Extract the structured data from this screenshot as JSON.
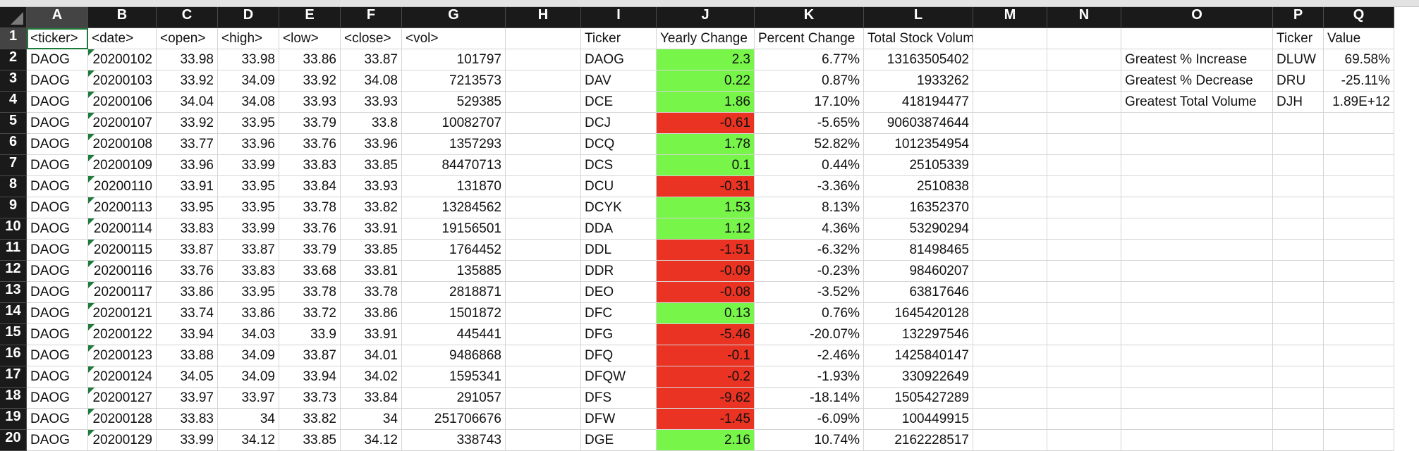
{
  "columns": [
    "A",
    "B",
    "C",
    "D",
    "E",
    "F",
    "G",
    "H",
    "I",
    "J",
    "K",
    "L",
    "M",
    "N",
    "O",
    "P",
    "Q"
  ],
  "rows": [
    {
      "n": "1",
      "cells": [
        "<ticker>",
        "<date>",
        "<open>",
        "<high>",
        "<low>",
        "<close>",
        "<vol>",
        "",
        "Ticker",
        "Yearly Change",
        "Percent Change",
        "Total Stock Volume",
        "",
        "",
        "",
        "Ticker",
        "Value"
      ]
    },
    {
      "n": "2",
      "cells": [
        "DAOG",
        "20200102",
        "33.98",
        "33.98",
        "33.86",
        "33.87",
        "101797",
        "",
        "DAOG",
        "2.3",
        "6.77%",
        "13163505402",
        "",
        "",
        "Greatest % Increase",
        "DLUW",
        "69.58%"
      ]
    },
    {
      "n": "3",
      "cells": [
        "DAOG",
        "20200103",
        "33.92",
        "34.09",
        "33.92",
        "34.08",
        "7213573",
        "",
        "DAV",
        "0.22",
        "0.87%",
        "1933262",
        "",
        "",
        "Greatest % Decrease",
        "DRU",
        "-25.11%"
      ]
    },
    {
      "n": "4",
      "cells": [
        "DAOG",
        "20200106",
        "34.04",
        "34.08",
        "33.93",
        "33.93",
        "529385",
        "",
        "DCE",
        "1.86",
        "17.10%",
        "418194477",
        "",
        "",
        "Greatest Total Volume",
        "DJH",
        "1.89E+12"
      ]
    },
    {
      "n": "5",
      "cells": [
        "DAOG",
        "20200107",
        "33.92",
        "33.95",
        "33.79",
        "33.8",
        "10082707",
        "",
        "DCJ",
        "-0.61",
        "-5.65%",
        "90603874644",
        "",
        "",
        "",
        "",
        ""
      ]
    },
    {
      "n": "6",
      "cells": [
        "DAOG",
        "20200108",
        "33.77",
        "33.96",
        "33.76",
        "33.96",
        "1357293",
        "",
        "DCQ",
        "1.78",
        "52.82%",
        "1012354954",
        "",
        "",
        "",
        "",
        ""
      ]
    },
    {
      "n": "7",
      "cells": [
        "DAOG",
        "20200109",
        "33.96",
        "33.99",
        "33.83",
        "33.85",
        "84470713",
        "",
        "DCS",
        "0.1",
        "0.44%",
        "25105339",
        "",
        "",
        "",
        "",
        ""
      ]
    },
    {
      "n": "8",
      "cells": [
        "DAOG",
        "20200110",
        "33.91",
        "33.95",
        "33.84",
        "33.93",
        "131870",
        "",
        "DCU",
        "-0.31",
        "-3.36%",
        "2510838",
        "",
        "",
        "",
        "",
        ""
      ]
    },
    {
      "n": "9",
      "cells": [
        "DAOG",
        "20200113",
        "33.95",
        "33.95",
        "33.78",
        "33.82",
        "13284562",
        "",
        "DCYK",
        "1.53",
        "8.13%",
        "16352370",
        "",
        "",
        "",
        "",
        ""
      ]
    },
    {
      "n": "10",
      "cells": [
        "DAOG",
        "20200114",
        "33.83",
        "33.99",
        "33.76",
        "33.91",
        "19156501",
        "",
        "DDA",
        "1.12",
        "4.36%",
        "53290294",
        "",
        "",
        "",
        "",
        ""
      ]
    },
    {
      "n": "11",
      "cells": [
        "DAOG",
        "20200115",
        "33.87",
        "33.87",
        "33.79",
        "33.85",
        "1764452",
        "",
        "DDL",
        "-1.51",
        "-6.32%",
        "81498465",
        "",
        "",
        "",
        "",
        ""
      ]
    },
    {
      "n": "12",
      "cells": [
        "DAOG",
        "20200116",
        "33.76",
        "33.83",
        "33.68",
        "33.81",
        "135885",
        "",
        "DDR",
        "-0.09",
        "-0.23%",
        "98460207",
        "",
        "",
        "",
        "",
        ""
      ]
    },
    {
      "n": "13",
      "cells": [
        "DAOG",
        "20200117",
        "33.86",
        "33.95",
        "33.78",
        "33.78",
        "2818871",
        "",
        "DEO",
        "-0.08",
        "-3.52%",
        "63817646",
        "",
        "",
        "",
        "",
        ""
      ]
    },
    {
      "n": "14",
      "cells": [
        "DAOG",
        "20200121",
        "33.74",
        "33.86",
        "33.72",
        "33.86",
        "1501872",
        "",
        "DFC",
        "0.13",
        "0.76%",
        "1645420128",
        "",
        "",
        "",
        "",
        ""
      ]
    },
    {
      "n": "15",
      "cells": [
        "DAOG",
        "20200122",
        "33.94",
        "34.03",
        "33.9",
        "33.91",
        "445441",
        "",
        "DFG",
        "-5.46",
        "-20.07%",
        "132297546",
        "",
        "",
        "",
        "",
        ""
      ]
    },
    {
      "n": "16",
      "cells": [
        "DAOG",
        "20200123",
        "33.88",
        "34.09",
        "33.87",
        "34.01",
        "9486868",
        "",
        "DFQ",
        "-0.1",
        "-2.46%",
        "1425840147",
        "",
        "",
        "",
        "",
        ""
      ]
    },
    {
      "n": "17",
      "cells": [
        "DAOG",
        "20200124",
        "34.05",
        "34.09",
        "33.94",
        "34.02",
        "1595341",
        "",
        "DFQW",
        "-0.2",
        "-1.93%",
        "330922649",
        "",
        "",
        "",
        "",
        ""
      ]
    },
    {
      "n": "18",
      "cells": [
        "DAOG",
        "20200127",
        "33.97",
        "33.97",
        "33.73",
        "33.84",
        "291057",
        "",
        "DFS",
        "-9.62",
        "-18.14%",
        "1505427289",
        "",
        "",
        "",
        "",
        ""
      ]
    },
    {
      "n": "19",
      "cells": [
        "DAOG",
        "20200128",
        "33.83",
        "34",
        "33.82",
        "34",
        "251706676",
        "",
        "DFW",
        "-1.45",
        "-6.09%",
        "100449915",
        "",
        "",
        "",
        "",
        ""
      ]
    },
    {
      "n": "20",
      "cells": [
        "DAOG",
        "20200129",
        "33.99",
        "34.12",
        "33.85",
        "34.12",
        "338743",
        "",
        "DGE",
        "2.16",
        "10.74%",
        "2162228517",
        "",
        "",
        "",
        "",
        ""
      ]
    }
  ],
  "colors": {
    "positive": "#77f649",
    "negative": "#ea3323",
    "selection": "#1d7a3a",
    "header_bg": "#1a1a1a"
  }
}
